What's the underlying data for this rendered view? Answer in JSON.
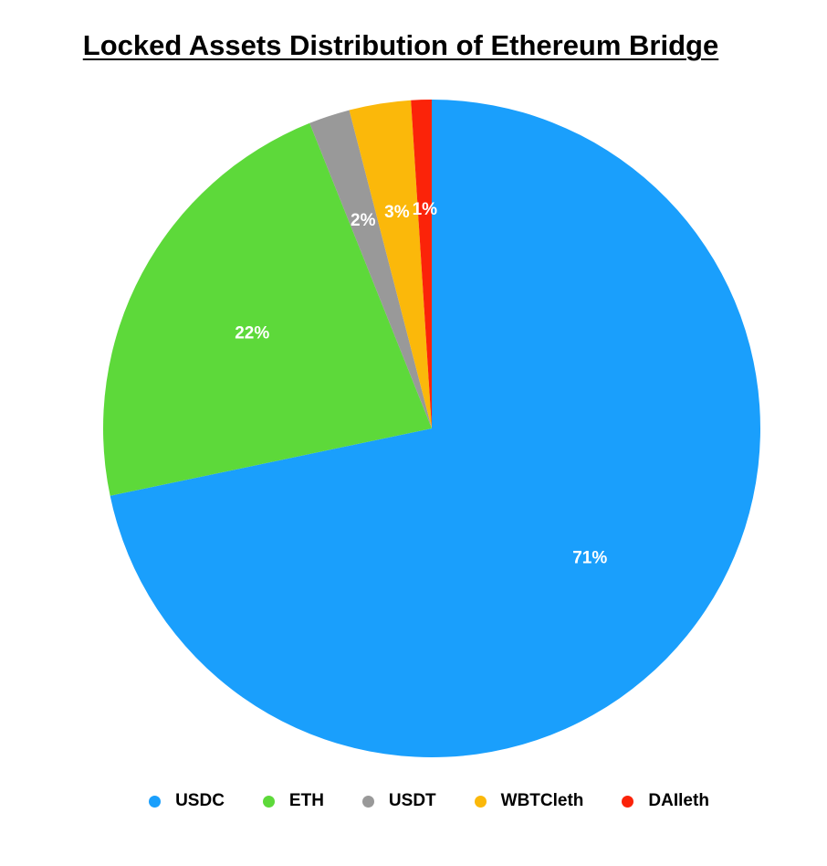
{
  "chart_data": {
    "type": "pie",
    "title": "Locked Assets Distribution of Ethereum Bridge",
    "legend_position": "bottom",
    "slices": [
      {
        "name": "USDC",
        "value": 71,
        "label": "71%",
        "color": "#1a9ffc"
      },
      {
        "name": "ETH",
        "value": 22,
        "label": "22%",
        "color": "#5dd93a"
      },
      {
        "name": "USDT",
        "value": 2,
        "label": "2%",
        "color": "#999999"
      },
      {
        "name": "WBTCleth",
        "value": 3,
        "label": "3%",
        "color": "#fbb80a"
      },
      {
        "name": "DAIleth",
        "value": 1,
        "label": "1%",
        "color": "#fb2309"
      }
    ]
  }
}
